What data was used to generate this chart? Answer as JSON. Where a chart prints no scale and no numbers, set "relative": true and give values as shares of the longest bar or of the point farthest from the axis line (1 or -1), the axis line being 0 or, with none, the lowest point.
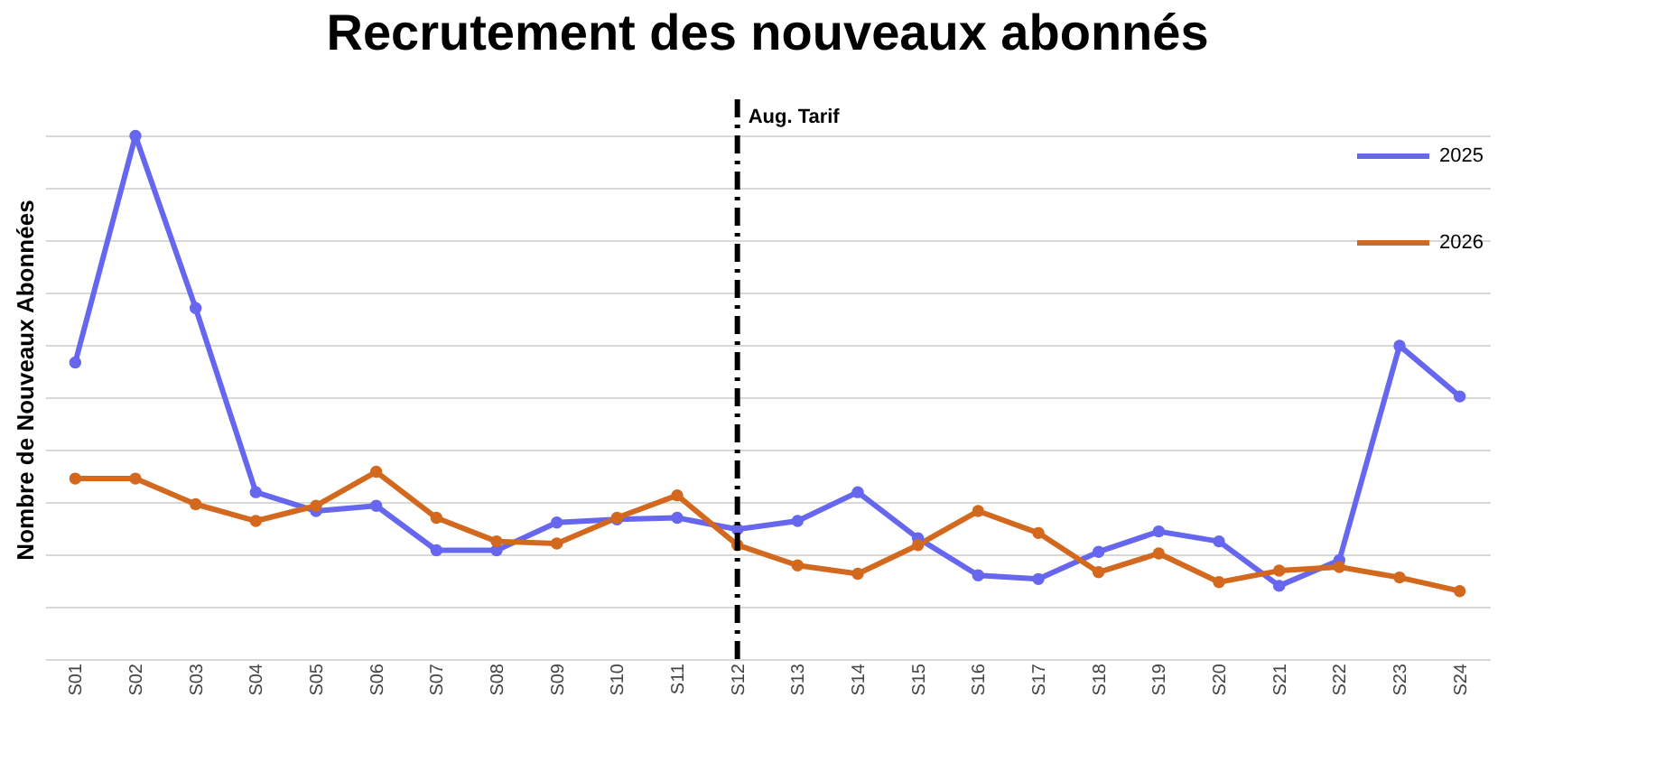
{
  "chart_data": {
    "type": "line",
    "title": "Recrutement des nouveaux abonnés",
    "ylabel": "Nombre de Nouveaux Abonnées",
    "relative": true,
    "grid": true,
    "legend": "top right",
    "marker": "circle",
    "line_style": "solid",
    "categories": [
      "S01",
      "S02",
      "S03",
      "S04",
      "S05",
      "S06",
      "S07",
      "S08",
      "S09",
      "S10",
      "S11",
      "S12",
      "S13",
      "S14",
      "S15",
      "S16",
      "S17",
      "S18",
      "S19",
      "S20",
      "S21",
      "S22",
      "S23",
      "S24"
    ],
    "series": [
      {
        "name": "2025",
        "color": "#6666ee",
        "values": [
          0.567,
          1,
          0.671,
          0.319,
          0.283,
          0.293,
          0.208,
          0.208,
          0.261,
          0.267,
          0.27,
          0.248,
          0.264,
          0.319,
          0.231,
          0.16,
          0.153,
          0.205,
          0.244,
          0.225,
          0.14,
          0.189,
          0.599,
          0.502
        ]
      },
      {
        "name": "2026",
        "color": "#d2691e",
        "values": [
          0.345,
          0.345,
          0.296,
          0.264,
          0.293,
          0.358,
          0.27,
          0.225,
          0.221,
          0.27,
          0.313,
          0.218,
          0.179,
          0.163,
          0.218,
          0.283,
          0.241,
          0.166,
          0.202,
          0.147,
          0.169,
          0.176,
          0.156,
          0.13
        ]
      }
    ],
    "ref_lines": [
      {
        "axis": "x",
        "value": "S12",
        "label": "Aug. Tarif",
        "color": "#000000",
        "line_style": "dashdot"
      }
    ]
  }
}
